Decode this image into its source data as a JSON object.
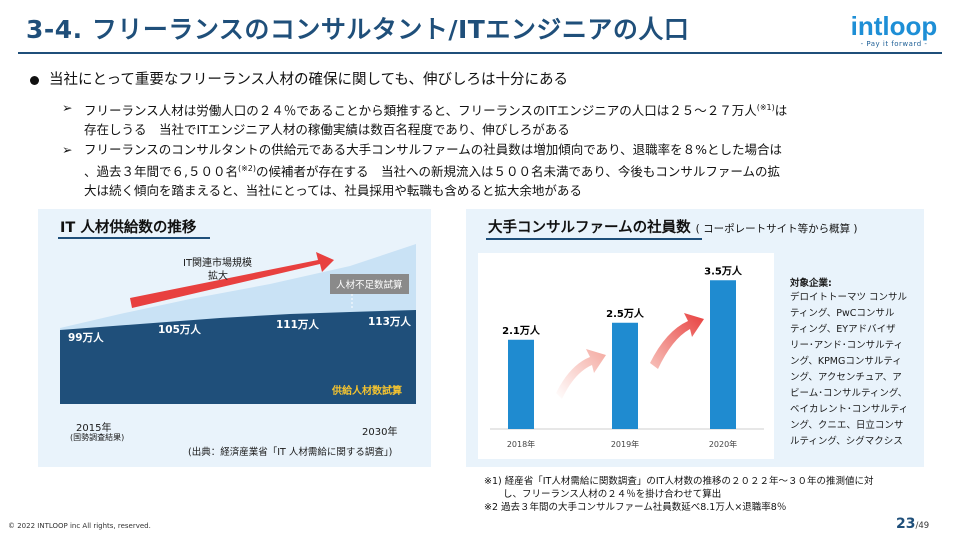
{
  "header": {
    "title": "3-4. フリーランスのコンサルタント/ITエンジニアの人口",
    "logo_word": "intloop",
    "logo_tagline": "- Pay it forward -"
  },
  "bullets": {
    "main": "当社にとって重要なフリーランス人材の確保に関しても、伸びしろは十分にある",
    "sub1_a": "フリーランス人材は労働人口の２４％であることから類推すると、フリーランスのITエンジニアの人口は２５～２７万人",
    "sub1_sup": "(※1)",
    "sub1_b": "は",
    "sub1_line2": "存在しうる　当社でITエンジニア人材の稼働実績は数百名程度であり、伸びしろがある",
    "sub2_line1": "フリーランスのコンサルタントの供給元である大手コンサルファームの社員数は増加傾向であり、退職率を８%とした場合は",
    "sub2_line2a": "、過去３年間で６,５００名",
    "sub2_sup": "(※2)",
    "sub2_line2b": "の候補者が存在する　当社への新規流入は５００名未満であり、今後もコンサルファームの拡",
    "sub2_line3": "大は続く傾向を踏まえると、当社にとっては、社員採用や転職も含めると拡大余地がある",
    "arrow_glyph": "➢"
  },
  "left_chart": {
    "title": "IT 人材供給数の推移",
    "market_label_1": "IT関連市場規模",
    "market_label_2": "拡大",
    "shortage_label": "人材不足数試算",
    "supply_label": "供給人材数試算",
    "values": [
      "99万人",
      "105万人",
      "111万人",
      "113万人"
    ],
    "year_start": "2015年",
    "year_start_note": "(国勢調査結果)",
    "year_end": "2030年",
    "source": "(出典：経済産業省「IT 人材需給に関する調査」)",
    "colors": {
      "supply": "#1f4f7a",
      "demand": "#c9e2f5",
      "arrow": "#e8403f",
      "shortage_box": "#8a8a8a"
    }
  },
  "right_chart": {
    "title": "大手コンサルファームの社員数",
    "title_note": "( コーポレートサイト等から概算 )",
    "chart_data": {
      "type": "bar",
      "categories": [
        "2018年",
        "2019年",
        "2020年"
      ],
      "values": [
        2.1,
        2.5,
        3.5
      ],
      "labels": [
        "2.1万人",
        "2.5万人",
        "3.5万人"
      ],
      "bar_color": "#1f8bd0"
    },
    "target_title": "対象企業:",
    "target_lines": [
      "デロイトトーマツ コンサル",
      "ティング、PwCコンサル",
      "ティング、EYアドバイザ",
      "リー･アンド･コンサルティ",
      "ング、KPMGコンサルティ",
      "ング、アクセンチュア、ア",
      "ビーム･コンサルティング、",
      "ベイカレント･コンサルティ",
      "ング、クニエ、日立コンサ",
      "ルティング、シグマクシス"
    ]
  },
  "notes": {
    "n1_line1": "※1) 経産省「IT人材需給に関数調査」のIT人材数の推移の２０２２年～３０年の推測値に対",
    "n1_line2": "　　し、フリーランス人材の２４％を掛け合わせて算出",
    "n2": "※2 過去３年間の大手コンサルファーム社員数延べ8.1万人×退職率8％"
  },
  "footer": {
    "copyright": "© 2022 INTLOOP inc All rights, reserved.",
    "page": "23",
    "total": "/49"
  }
}
